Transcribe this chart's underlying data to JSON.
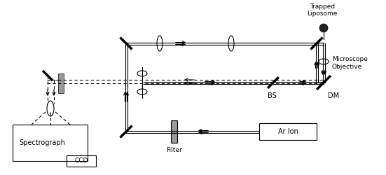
{
  "bg_color": "#ffffff",
  "line_color": "#000000",
  "gray_color": "#777777",
  "fig_width": 5.51,
  "fig_height": 2.5,
  "dpi": 100,
  "labels": {
    "spectrograph": "Spectrograph",
    "ccd": "CCD",
    "filter": "Filter",
    "ar_ion": "Ar Ion",
    "bs": "BS",
    "dm": "DM",
    "trapped": "Trapped\nLiposome",
    "microscope": "Microscope\nObjective"
  }
}
